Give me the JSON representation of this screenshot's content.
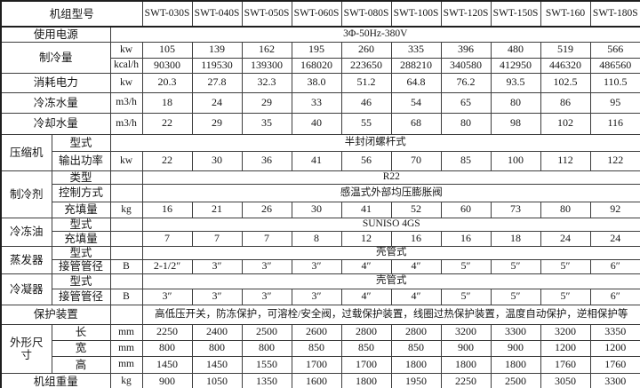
{
  "table": {
    "header": {
      "model_label": "机组型号",
      "models": [
        "SWT-030S",
        "SWT-040S",
        "SWT-050S",
        "SWT-060S",
        "SWT-080S",
        "SWT-100S",
        "SWT-120S",
        "SWT-150S",
        "SWT-160",
        "SWT-180S"
      ]
    },
    "rows": [
      {
        "group": "使用电源",
        "group_cols": 2,
        "merged": "3Φ-50Hz-380V",
        "merged_span": 11
      },
      {
        "group": "制冷量",
        "group_cols": 2,
        "group_rows": 2,
        "unit": "kw",
        "values": [
          "105",
          "139",
          "162",
          "195",
          "260",
          "335",
          "396",
          "480",
          "519",
          "566"
        ]
      },
      {
        "unit": "kcal/h",
        "values": [
          "90300",
          "119530",
          "139300",
          "168020",
          "223650",
          "288210",
          "340580",
          "412950",
          "446320",
          "486560"
        ]
      },
      {
        "group": "消耗电力",
        "group_cols": 2,
        "unit": "kw",
        "values": [
          "20.3",
          "27.8",
          "32.3",
          "38.0",
          "51.2",
          "64.8",
          "76.2",
          "93.5",
          "102.5",
          "110.5"
        ]
      },
      {
        "group": "冷冻水量",
        "group_cols": 2,
        "unit": "m3/h",
        "values": [
          "18",
          "24",
          "29",
          "33",
          "46",
          "54",
          "65",
          "80",
          "86",
          "95"
        ]
      },
      {
        "group": "冷却水量",
        "group_cols": 2,
        "unit": "m3/h",
        "values": [
          "22",
          "29",
          "35",
          "40",
          "55",
          "68",
          "80",
          "98",
          "102",
          "116"
        ]
      },
      {
        "group": "压缩机",
        "group_rows": 2,
        "sub": "型式",
        "merged": "半封闭螺杆式",
        "merged_span": 11
      },
      {
        "sub": "输出功率",
        "unit": "kw",
        "values": [
          "22",
          "30",
          "36",
          "41",
          "56",
          "70",
          "85",
          "100",
          "112",
          "122"
        ]
      },
      {
        "group": "制冷剂",
        "group_rows": 3,
        "sub": "类型",
        "unit": "",
        "merged": "R22",
        "merged_span": 10
      },
      {
        "sub": "控制方式",
        "unit": "",
        "merged": "感温式外部均压膨胀阀",
        "merged_span": 10
      },
      {
        "sub": "充填量",
        "unit": "kg",
        "values": [
          "16",
          "21",
          "26",
          "30",
          "41",
          "52",
          "60",
          "73",
          "80",
          "92"
        ]
      },
      {
        "group": "冷冻油",
        "group_rows": 2,
        "sub": "型式",
        "unit": "",
        "merged": "SUNISO 4GS",
        "merged_span": 10
      },
      {
        "sub": "充填量",
        "unit": "",
        "values": [
          "7",
          "7",
          "7",
          "8",
          "12",
          "16",
          "16",
          "18",
          "24",
          "24"
        ]
      },
      {
        "group": "蒸发器",
        "group_rows": 2,
        "sub": "型式",
        "unit": "",
        "merged": "壳管式",
        "merged_span": 10
      },
      {
        "sub": "接管管径",
        "unit": "B",
        "values": [
          "2-1/2″",
          "3″",
          "3″",
          "3″",
          "4″",
          "4″",
          "5″",
          "5″",
          "5″",
          "6″"
        ]
      },
      {
        "group": "冷凝器",
        "group_rows": 2,
        "sub": "型式",
        "unit": "",
        "merged": "壳管式",
        "merged_span": 10
      },
      {
        "sub": "接管管径",
        "unit": "B",
        "values": [
          "3″",
          "3″",
          "3″",
          "3″",
          "4″",
          "4″",
          "5″",
          "5″",
          "5″",
          "6″"
        ]
      },
      {
        "group": "保护装置",
        "group_cols": 2,
        "unit": "",
        "merged": "高低压开关，防冻保护，可溶栓/安全阀，过载保护装置，线圈过热保护装置，温度自动保护，逆相保护等",
        "merged_span": 10
      },
      {
        "group": "外形尺寸",
        "group_rows": 3,
        "sub": "长",
        "unit": "mm",
        "values": [
          "2250",
          "2400",
          "2500",
          "2600",
          "2800",
          "2800",
          "3200",
          "3300",
          "3200",
          "3350"
        ]
      },
      {
        "sub": "宽",
        "unit": "mm",
        "values": [
          "800",
          "800",
          "800",
          "850",
          "850",
          "850",
          "900",
          "900",
          "1200",
          "1200"
        ]
      },
      {
        "sub": "高",
        "unit": "mm",
        "values": [
          "1450",
          "1450",
          "1550",
          "1700",
          "1700",
          "1800",
          "1800",
          "1800",
          "1760",
          "1760"
        ]
      },
      {
        "group": "机组重量",
        "group_cols": 2,
        "unit": "kg",
        "values": [
          "900",
          "1050",
          "1350",
          "1600",
          "1800",
          "1950",
          "2250",
          "2500",
          "3050",
          "3300"
        ]
      }
    ]
  }
}
